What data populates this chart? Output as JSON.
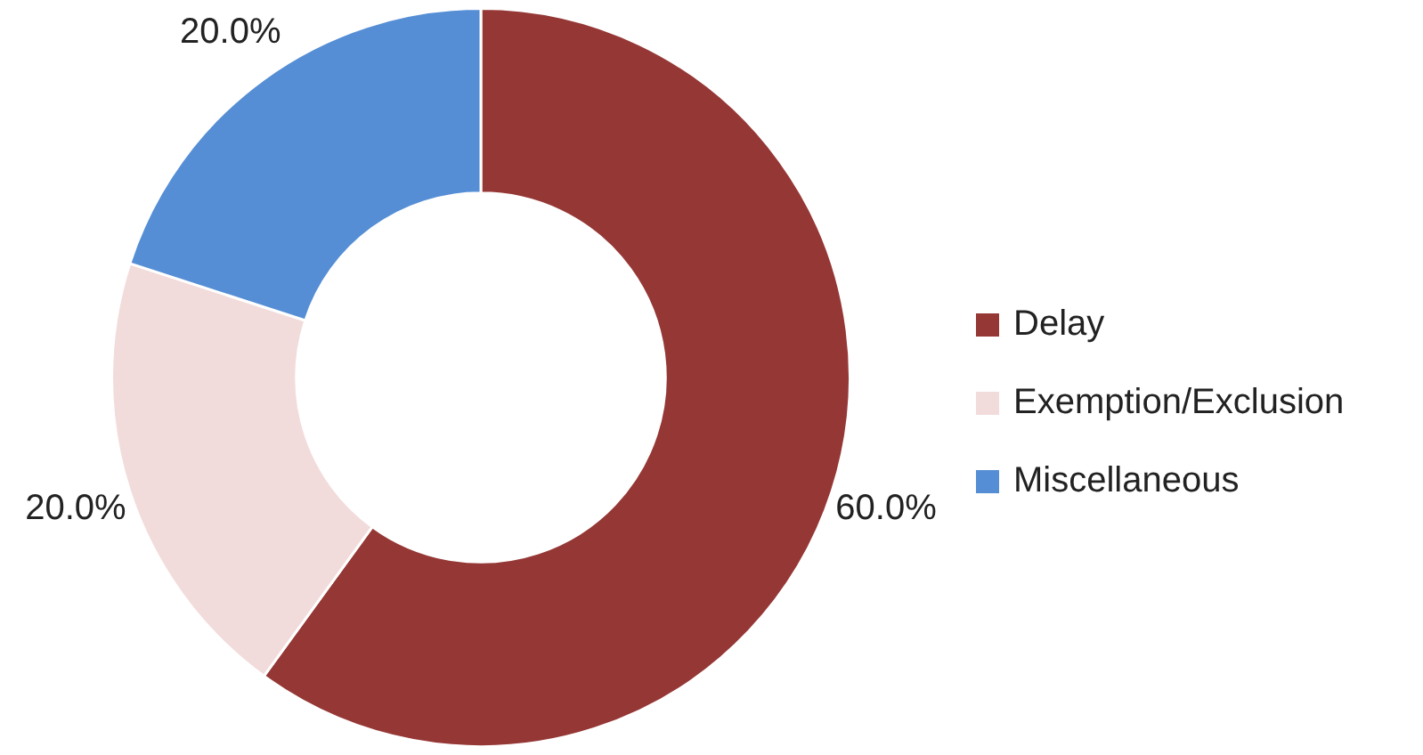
{
  "chart_data": {
    "type": "donut",
    "categories": [
      "Delay",
      "Exemption/Exclusion",
      "Miscellaneous"
    ],
    "values": [
      60,
      20,
      20
    ],
    "colors": [
      "#953735",
      "#f2dcdb",
      "#558ed5"
    ],
    "value_labels": [
      "60.0%",
      "20.0%",
      "20.0%"
    ],
    "legend": "right"
  }
}
